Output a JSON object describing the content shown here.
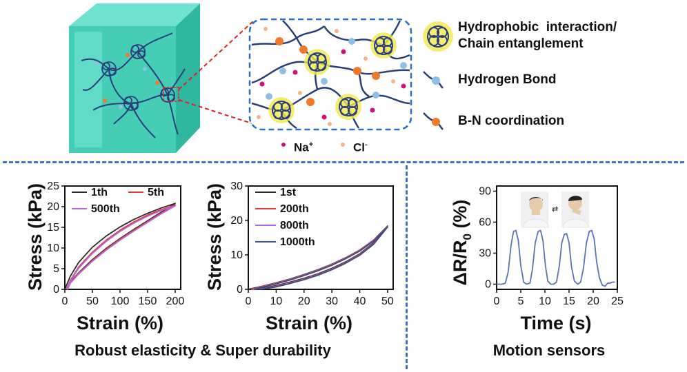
{
  "legend": {
    "hydrophobic_line1": "Hydrophobic  interaction/",
    "hydrophobic_line2": "Chain entanglement",
    "hydrogen_bond": "Hydrogen Bond",
    "bn_coordination": "B-N coordination"
  },
  "ions": {
    "na": "Na",
    "na_sup": "+",
    "cl": "Cl",
    "cl_sup": "-"
  },
  "captions": {
    "left": "Robust elasticity & Super durability",
    "right": "Motion sensors"
  },
  "colors": {
    "divider": "#3d72c4",
    "hydrogel": "#4fd6c0",
    "chain": "#2a3f7a",
    "entanglement_glow": "#f3e84c",
    "hydrogen_bond": "#8fbfe6",
    "bn_coordination": "#f07a2a",
    "na_ion": "#d0107a",
    "cl_ion": "#f2b48c",
    "zoom_lines": "#e02020"
  },
  "chart_data": [
    {
      "type": "line",
      "xlabel": "Strain (%)",
      "ylabel": "Stress (kPa)",
      "xlim": [
        0,
        210
      ],
      "ylim": [
        0,
        25
      ],
      "xticks": [
        0,
        50,
        100,
        150,
        200
      ],
      "yticks": [
        0,
        5,
        10,
        15,
        20,
        25
      ],
      "legend_position": "top",
      "series": [
        {
          "name": "1th",
          "color": "#2b2b2b",
          "loading_x": [
            0,
            10,
            25,
            50,
            75,
            100,
            125,
            150,
            175,
            200
          ],
          "loading_y": [
            0,
            3.2,
            6.5,
            10.2,
            12.9,
            15.1,
            16.9,
            18.4,
            19.7,
            20.8
          ],
          "unloading_x": [
            200,
            175,
            150,
            125,
            100,
            75,
            50,
            25,
            10,
            3
          ],
          "unloading_y": [
            20.8,
            18.7,
            16.6,
            14.5,
            12.3,
            9.9,
            7.2,
            4.0,
            1.8,
            0
          ]
        },
        {
          "name": "5th",
          "color": "#e8363a",
          "loading_x": [
            3,
            10,
            25,
            50,
            75,
            100,
            125,
            150,
            175,
            200
          ],
          "loading_y": [
            0,
            2.2,
            5.4,
            9.0,
            11.9,
            14.3,
            16.3,
            18.0,
            19.3,
            20.4
          ],
          "unloading_x": [
            200,
            175,
            150,
            125,
            100,
            75,
            50,
            25,
            10,
            4
          ],
          "unloading_y": [
            20.4,
            18.5,
            16.4,
            14.3,
            12.1,
            9.7,
            7.0,
            3.9,
            1.7,
            0
          ]
        },
        {
          "name": "500th",
          "color": "#b266e0",
          "loading_x": [
            4,
            10,
            25,
            50,
            75,
            100,
            125,
            150,
            175,
            200
          ],
          "loading_y": [
            0,
            2.0,
            5.1,
            8.7,
            11.6,
            14.0,
            16.0,
            17.7,
            19.1,
            20.2
          ],
          "unloading_x": [
            200,
            175,
            150,
            125,
            100,
            75,
            50,
            25,
            10,
            5
          ],
          "unloading_y": [
            20.2,
            18.3,
            16.2,
            14.1,
            11.9,
            9.5,
            6.8,
            3.7,
            1.5,
            0
          ]
        }
      ]
    },
    {
      "type": "line",
      "xlabel": "Strain (%)",
      "ylabel": "Stress (kPa)",
      "xlim": [
        0,
        52
      ],
      "ylim": [
        0,
        30
      ],
      "xticks": [
        0,
        10,
        20,
        30,
        40,
        50
      ],
      "yticks": [
        0,
        10,
        20,
        30
      ],
      "legend_position": "top-left",
      "series": [
        {
          "name": "1st",
          "color": "#2b2b2b",
          "loading_x": [
            0,
            5,
            10,
            15,
            20,
            25,
            30,
            35,
            40,
            45,
            50
          ],
          "loading_y": [
            0,
            0.9,
            1.9,
            3.0,
            4.3,
            5.7,
            7.3,
            9.2,
            11.4,
            14.3,
            18.4
          ],
          "unloading_x": [
            50,
            45,
            40,
            35,
            30,
            25,
            20,
            15,
            10,
            5,
            1
          ],
          "unloading_y": [
            18.4,
            13.5,
            10.3,
            8.0,
            6.1,
            4.5,
            3.2,
            2.1,
            1.1,
            0.3,
            0
          ]
        },
        {
          "name": "200th",
          "color": "#e8363a",
          "loading_x": [
            1,
            5,
            10,
            15,
            20,
            25,
            30,
            35,
            40,
            45,
            50
          ],
          "loading_y": [
            0,
            0.8,
            1.8,
            2.9,
            4.2,
            5.6,
            7.2,
            9.1,
            11.3,
            14.2,
            18.3
          ],
          "unloading_x": [
            50,
            45,
            40,
            35,
            30,
            25,
            20,
            15,
            10,
            5,
            1.5
          ],
          "unloading_y": [
            18.3,
            13.3,
            10.1,
            7.8,
            5.9,
            4.3,
            3.0,
            1.9,
            0.9,
            0.2,
            0
          ]
        },
        {
          "name": "800th",
          "color": "#b266e0",
          "loading_x": [
            1.5,
            5,
            10,
            15,
            20,
            25,
            30,
            35,
            40,
            45,
            50
          ],
          "loading_y": [
            0,
            0.7,
            1.7,
            2.8,
            4.1,
            5.5,
            7.1,
            9.0,
            11.2,
            14.1,
            18.2
          ],
          "unloading_x": [
            50,
            45,
            40,
            35,
            30,
            25,
            20,
            15,
            10,
            5,
            2
          ],
          "unloading_y": [
            18.2,
            13.2,
            10.0,
            7.7,
            5.8,
            4.2,
            2.9,
            1.8,
            0.8,
            0.2,
            0
          ]
        },
        {
          "name": "1000th",
          "color": "#3b4a7a",
          "loading_x": [
            2,
            5,
            10,
            15,
            20,
            25,
            30,
            35,
            40,
            45,
            50
          ],
          "loading_y": [
            0,
            0.6,
            1.6,
            2.7,
            4.0,
            5.4,
            7.0,
            8.9,
            11.1,
            14.0,
            18.1
          ],
          "unloading_x": [
            50,
            45,
            40,
            35,
            30,
            25,
            20,
            15,
            10,
            5,
            2.5
          ],
          "unloading_y": [
            18.1,
            13.1,
            9.9,
            7.6,
            5.7,
            4.1,
            2.8,
            1.7,
            0.7,
            0.1,
            0
          ]
        }
      ]
    },
    {
      "type": "line",
      "xlabel": "Time (s)",
      "ylabel": "ΔR/R0 (%)",
      "ylabel_main": "ΔR/R",
      "ylabel_sub": "0",
      "ylabel_unit": " (%)",
      "xlim": [
        0,
        25
      ],
      "ylim": [
        -5,
        95
      ],
      "xticks": [
        0,
        5,
        10,
        15,
        20,
        25
      ],
      "yticks": [
        0,
        30,
        60,
        90
      ],
      "series": [
        {
          "name": "",
          "color": "#5b73b3",
          "x": [
            0,
            1.2,
            1.8,
            2.4,
            3.0,
            3.5,
            4.0,
            4.5,
            5.0,
            5.6,
            6.2,
            6.9,
            7.4,
            8.0,
            8.6,
            9.1,
            9.6,
            10.1,
            10.6,
            11.2,
            11.8,
            12.4,
            13.0,
            13.5,
            14.0,
            14.5,
            15.0,
            15.5,
            16.1,
            16.8,
            17.4,
            18.0,
            18.6,
            19.2,
            19.7,
            20.2,
            20.7,
            21.3,
            21.9,
            22.5,
            23.0,
            23.5,
            24.0,
            24.5
          ],
          "y": [
            0,
            0,
            1,
            12,
            38,
            51,
            52,
            42,
            18,
            2,
            0,
            1,
            14,
            40,
            51,
            52,
            42,
            18,
            3,
            0,
            0,
            2,
            18,
            40,
            48,
            49,
            40,
            17,
            3,
            0,
            2,
            16,
            40,
            51,
            52,
            44,
            22,
            6,
            -1,
            -2,
            1,
            1,
            2,
            2
          ]
        }
      ]
    }
  ]
}
